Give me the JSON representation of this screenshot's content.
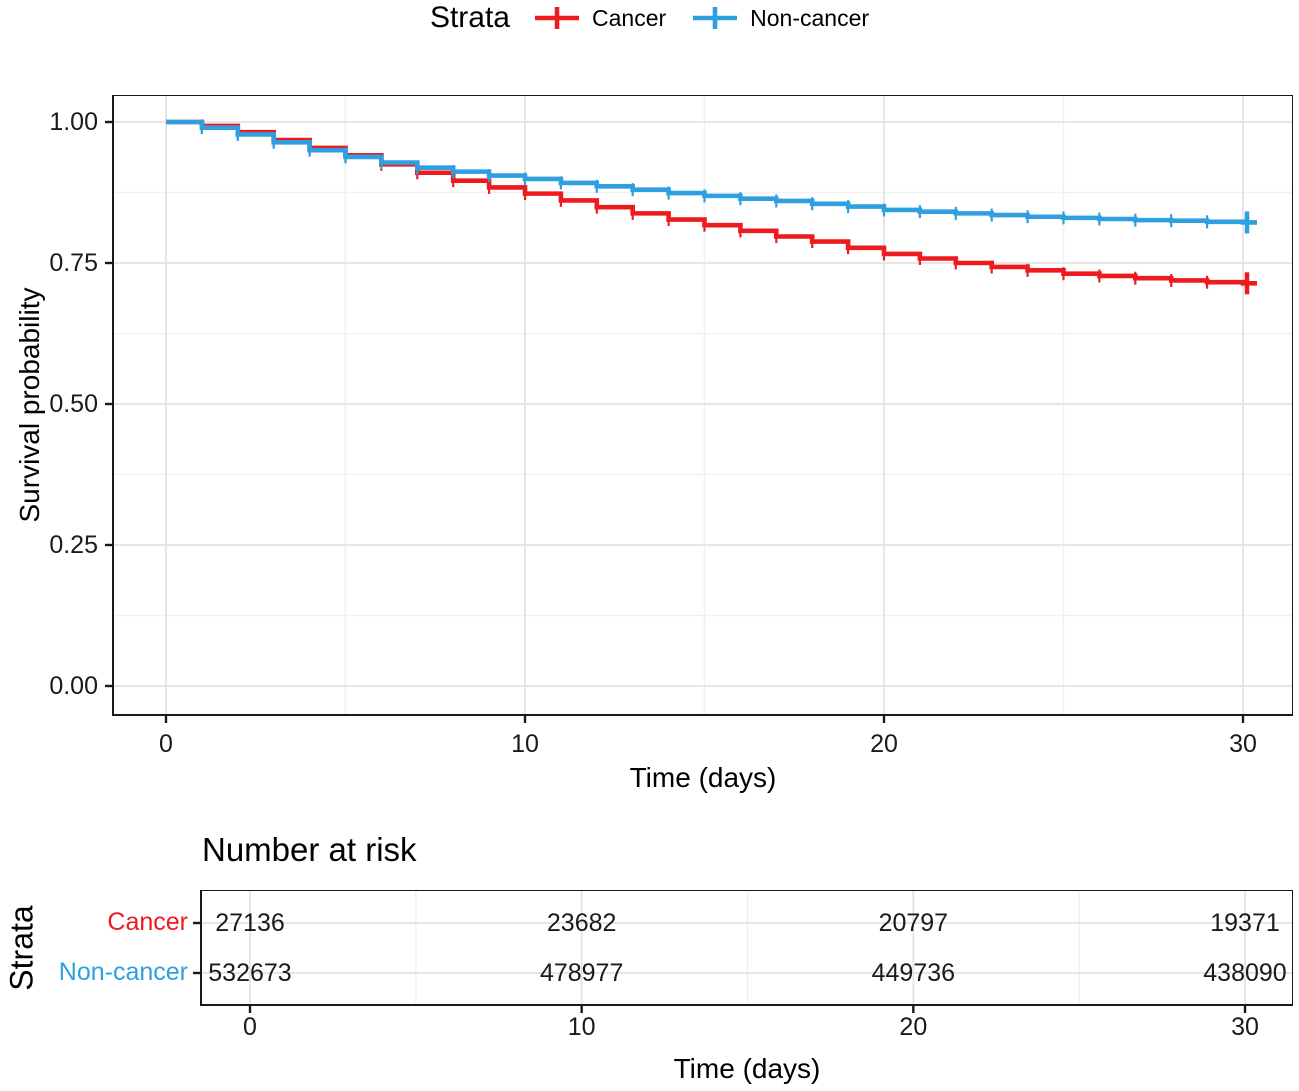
{
  "colors": {
    "cancer": "#EE1B1E",
    "noncancer": "#2E9FDF",
    "grid_major": "#E3E3E3",
    "grid_minor": "#F1F1F1",
    "panel_border": "#1A1A1A",
    "tick_text": "#1a1a1a"
  },
  "legend": {
    "title": "Strata",
    "items": [
      {
        "label": "Cancer",
        "color": "#EE1B1E"
      },
      {
        "label": "Non-cancer",
        "color": "#2E9FDF"
      }
    ]
  },
  "chart_data": {
    "type": "line",
    "style": "kaplan-meier-step",
    "title": "",
    "xlabel": "Time (days)",
    "ylabel": "Survival probability",
    "xlim": [
      0,
      30
    ],
    "ylim": [
      0,
      1
    ],
    "xticks": [
      0,
      10,
      20,
      30
    ],
    "yticks": [
      1.0,
      0.75,
      0.5,
      0.25,
      0.0
    ],
    "ytick_labels": [
      "1.00",
      "0.75",
      "0.50",
      "0.25",
      "0.00"
    ],
    "x_minor_gridlines": [
      5,
      15,
      25
    ],
    "y_minor_gridlines": [
      0.875,
      0.625,
      0.375,
      0.125
    ],
    "grid": true,
    "legend_position": "top",
    "end_censor_plus": true,
    "x": [
      0,
      1,
      2,
      3,
      4,
      5,
      6,
      7,
      8,
      9,
      10,
      11,
      12,
      13,
      14,
      15,
      16,
      17,
      18,
      19,
      20,
      21,
      22,
      23,
      24,
      25,
      26,
      27,
      28,
      29,
      30
    ],
    "series": [
      {
        "name": "Cancer",
        "color": "#EE1B1E",
        "values": [
          1.0,
          0.993,
          0.982,
          0.968,
          0.954,
          0.941,
          0.925,
          0.91,
          0.896,
          0.884,
          0.873,
          0.861,
          0.849,
          0.838,
          0.827,
          0.817,
          0.807,
          0.797,
          0.788,
          0.777,
          0.766,
          0.758,
          0.75,
          0.743,
          0.737,
          0.731,
          0.727,
          0.723,
          0.719,
          0.716,
          0.714
        ]
      },
      {
        "name": "Non-cancer",
        "color": "#2E9FDF",
        "values": [
          1.0,
          0.99,
          0.978,
          0.964,
          0.95,
          0.938,
          0.928,
          0.919,
          0.912,
          0.905,
          0.899,
          0.892,
          0.886,
          0.88,
          0.874,
          0.869,
          0.864,
          0.86,
          0.855,
          0.85,
          0.844,
          0.841,
          0.838,
          0.835,
          0.832,
          0.83,
          0.828,
          0.826,
          0.825,
          0.823,
          0.822
        ]
      }
    ]
  },
  "risk_table": {
    "title": "Number at risk",
    "ylabel": "Strata",
    "xlabel": "Time (days)",
    "xticks": [
      0,
      10,
      20,
      30
    ],
    "rows": [
      {
        "label": "Cancer",
        "color": "#EE1B1E",
        "values": [
          27136,
          23682,
          20797,
          19371
        ]
      },
      {
        "label": "Non-cancer",
        "color": "#2E9FDF",
        "values": [
          532673,
          478977,
          449736,
          438090
        ]
      }
    ]
  }
}
